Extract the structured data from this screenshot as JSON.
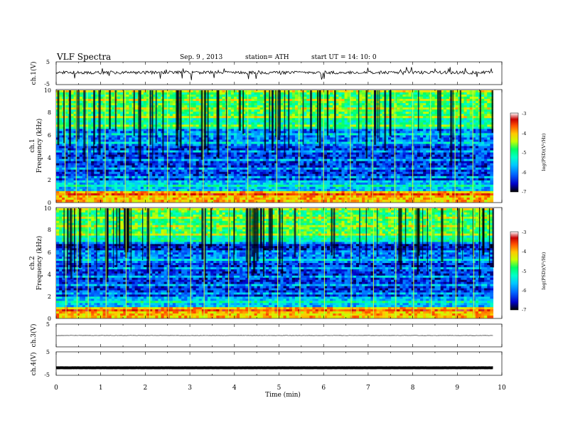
{
  "header": {
    "title": "VLF  Spectra",
    "date": "Sep. 9  , 2013",
    "station": "station= ATH",
    "start": "start  UT  =    14: 10: 0"
  },
  "chart_data": [
    {
      "type": "line",
      "panel": "ch1-waveform",
      "ylabel": "ch.1(V)",
      "ylim": [
        -5,
        5
      ],
      "yticks": [
        "5",
        "-5"
      ],
      "baseline_level": 0.3,
      "noise_amplitude": 0.45
    },
    {
      "type": "heatmap",
      "panel": "ch1-spectrogram",
      "ylabel_top": "ch.1",
      "ylabel": "Frequency  (kHz)",
      "ylim": [
        0,
        10
      ],
      "yticks": [
        "0",
        "2",
        "4",
        "6",
        "8",
        "10"
      ],
      "colorbar": {
        "label": "log(PSD)(V²/Hz)",
        "range": [
          -7,
          -3
        ],
        "ticks": [
          "-3",
          "-4",
          "-5",
          "-6",
          "-7"
        ],
        "colors": [
          "#000000",
          "#0000c8",
          "#0064ff",
          "#00c8ff",
          "#00ffc8",
          "#00ff64",
          "#c8ff00",
          "#ffc800",
          "#ff5000",
          "#c80000",
          "#ffffff"
        ]
      },
      "spheric_times_min": [
        0.2,
        0.45,
        0.7,
        1.1,
        1.55,
        2.08,
        2.5,
        3.0,
        3.3,
        3.85,
        4.3,
        4.95,
        5.45,
        6.0,
        6.6,
        7.1,
        7.6,
        8.0,
        8.4,
        8.95,
        9.35
      ]
    },
    {
      "type": "heatmap",
      "panel": "ch2-spectrogram",
      "ylabel_top": "ch.2",
      "ylabel": "Frequency  (kHz)",
      "ylim": [
        0,
        10
      ],
      "yticks": [
        "0",
        "2",
        "4",
        "6",
        "8",
        "10"
      ],
      "colorbar": {
        "label": "log(PSD)(V²/Hz)",
        "range": [
          -7,
          -3
        ],
        "ticks": [
          "-3",
          "-4",
          "-5",
          "-6",
          "-7"
        ]
      }
    },
    {
      "type": "line",
      "panel": "ch3-waveform",
      "ylabel": "ch.3(V)",
      "ylim": [
        -5,
        5
      ],
      "yticks": [
        "5"
      ],
      "baseline_level": 0.0
    },
    {
      "type": "line",
      "panel": "ch4-waveform",
      "ylabel": "ch.4(V)",
      "ylim": [
        -5,
        5
      ],
      "yticks": [
        "5",
        "-5"
      ],
      "baseline_level": -1.8
    }
  ],
  "xaxis": {
    "label": "Time  (min)",
    "range": [
      0,
      10
    ],
    "data_end": 9.8,
    "ticks": [
      "0",
      "1",
      "2",
      "3",
      "4",
      "5",
      "6",
      "7",
      "8",
      "9",
      "10"
    ]
  }
}
